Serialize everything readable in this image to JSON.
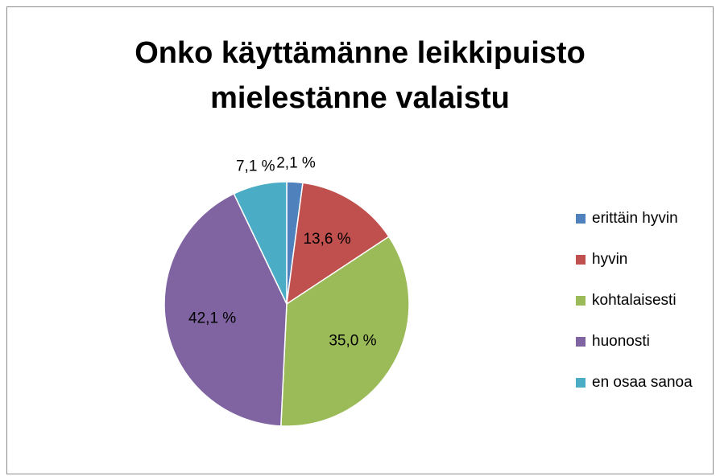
{
  "chart_data": {
    "type": "pie",
    "title": "Onko käyttämänne leikkipuisto\nmielestänne valaistu",
    "categories": [
      "erittäin hyvin",
      "hyvin",
      "kohtalaisesti",
      "huonosti",
      "en osaa sanoa"
    ],
    "values": [
      2.1,
      13.6,
      35.0,
      42.1,
      7.1
    ],
    "value_labels": [
      "2,1 %",
      "13,6 %",
      "35,0 %",
      "42,1 %",
      "7,1 %"
    ],
    "colors": [
      "#4f81bd",
      "#c0504d",
      "#9bbb59",
      "#8064a2",
      "#4bacc6"
    ],
    "legend": "right"
  }
}
